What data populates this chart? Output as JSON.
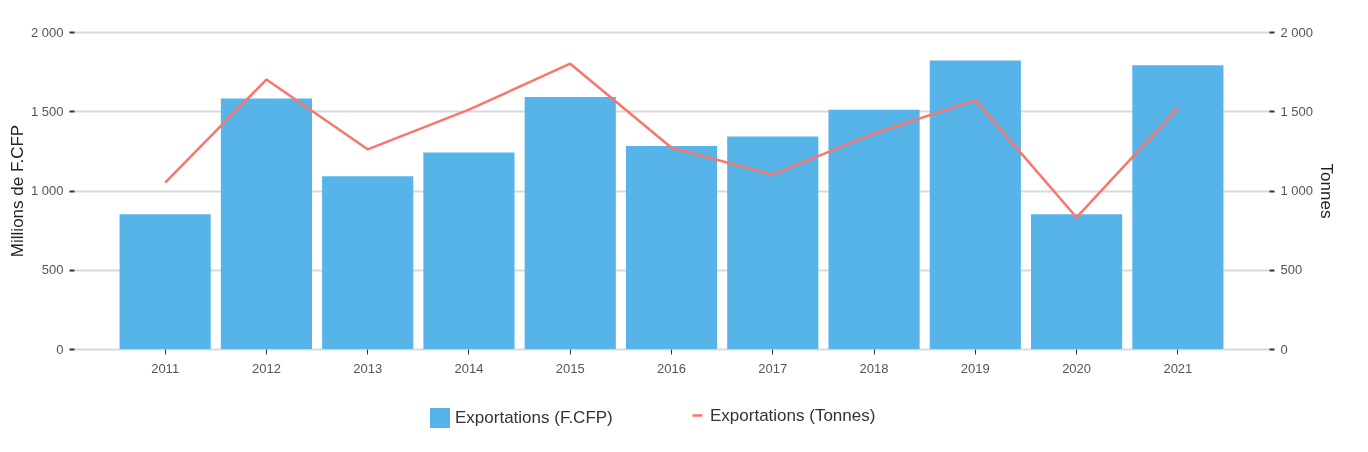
{
  "chart_data": {
    "type": "bar",
    "categories": [
      "2011",
      "2012",
      "2013",
      "2014",
      "2015",
      "2016",
      "2017",
      "2018",
      "2019",
      "2020",
      "2021"
    ],
    "series": [
      {
        "name": "Exportations (F.CFP)",
        "color": "#56b4e9",
        "values": [
          850,
          1580,
          1090,
          1240,
          1590,
          1280,
          1340,
          1510,
          1820,
          850,
          1790
        ]
      },
      {
        "name": "Exportations (Tonnes)",
        "type": "line",
        "axis": "y2",
        "color": "#f8766d",
        "marker": "none",
        "line_style": "solid",
        "values": [
          1050,
          1700,
          1260,
          1510,
          1800,
          1270,
          1100,
          1360,
          1570,
          830,
          1520
        ]
      }
    ],
    "ylabel": "Millions de F.CFP",
    "y2label": "Tonnes",
    "ylim": [
      0,
      2000
    ],
    "yticks": [
      0,
      500,
      {
        "value": 1000,
        "label": "1 000"
      },
      {
        "value": 1500,
        "label": "1 500"
      },
      {
        "value": 2000,
        "label": "2 000"
      }
    ],
    "y2lim": [
      0,
      2000
    ],
    "y2ticks": [
      0,
      500,
      {
        "value": 1000,
        "label": "1 000"
      },
      {
        "value": 1500,
        "label": "1 500"
      },
      {
        "value": 2000,
        "label": "2 000"
      }
    ],
    "grid": "y",
    "legend": "bottom"
  }
}
